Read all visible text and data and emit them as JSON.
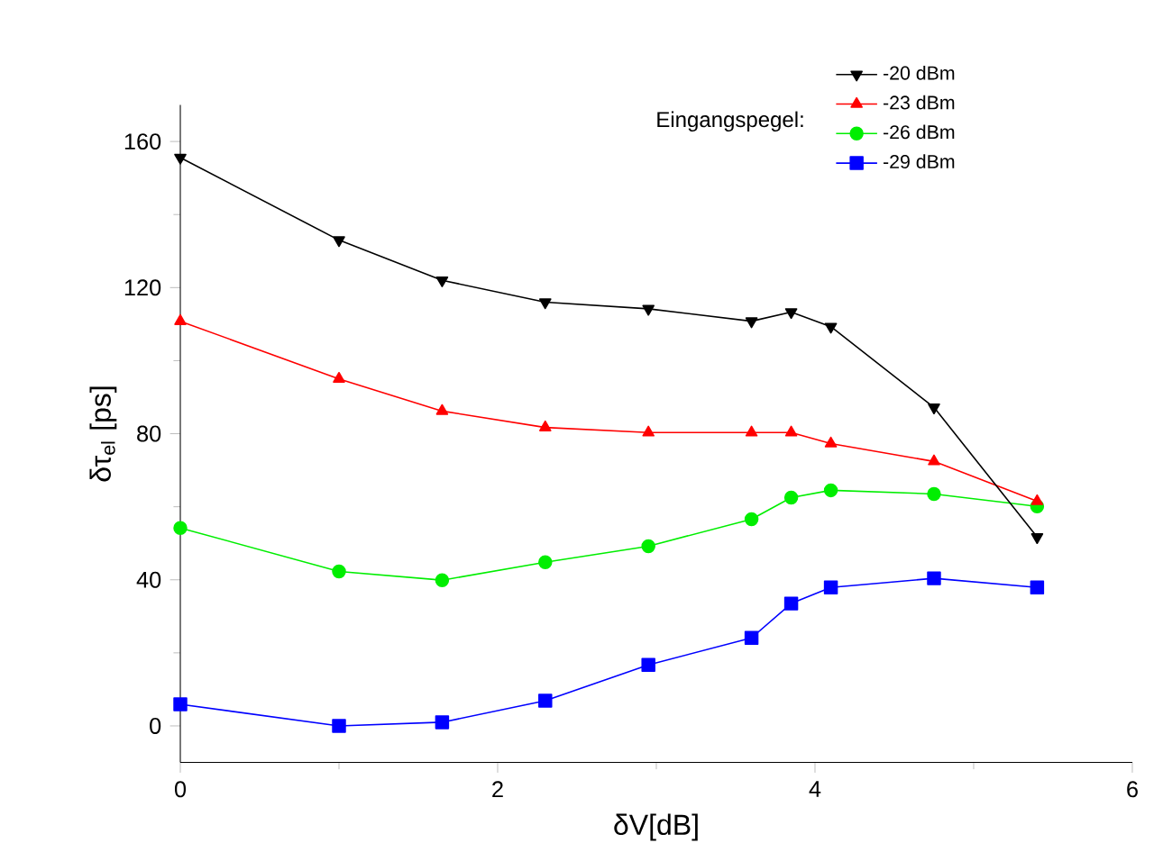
{
  "chart_data": {
    "type": "line",
    "xlabel": "δV[dB]",
    "ylabel": "δτ$_{el}$ [ps]",
    "legend_title": "Eingangspegel:",
    "x": [
      0,
      1,
      1.65,
      2.3,
      2.95,
      3.6,
      3.85,
      4.1,
      4.75,
      5.4
    ],
    "series": [
      {
        "name": "-20 dBm",
        "color": "#000000",
        "marker": "triangle-down",
        "values": [
          155.6,
          133,
          122,
          116,
          114.2,
          110.8,
          113.3,
          109.3,
          87.2,
          51.7
        ]
      },
      {
        "name": "-23 dBm",
        "color": "#ff0000",
        "marker": "triangle",
        "values": [
          110.8,
          95,
          86.2,
          81.7,
          80.3,
          80.3,
          80.3,
          77.3,
          72.4,
          61.5
        ]
      },
      {
        "name": "-26 dBm",
        "color": "#00ee00",
        "marker": "circle",
        "values": [
          54.2,
          42.3,
          39.9,
          44.8,
          49.2,
          56.6,
          62.5,
          64.5,
          63.5,
          60.1
        ]
      },
      {
        "name": "-29 dBm",
        "color": "#0000ff",
        "marker": "square",
        "values": [
          5.9,
          0,
          1,
          6.9,
          16.7,
          24.1,
          33.5,
          37.9,
          40.4,
          37.9
        ]
      }
    ],
    "xlim": [
      0,
      6
    ],
    "xticks": [
      0,
      2,
      4,
      6
    ],
    "ylim": [
      -10,
      170
    ],
    "yticks": [
      0,
      40,
      80,
      120,
      160
    ],
    "grid": false,
    "legend": "top right",
    "line_style": "solid"
  }
}
